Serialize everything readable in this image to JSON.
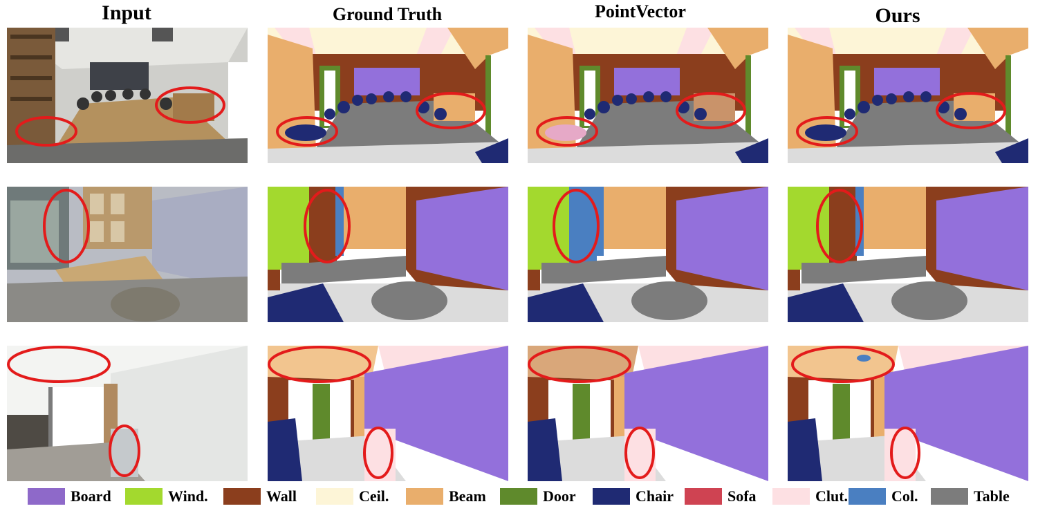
{
  "columns": [
    "Input",
    "Ground Truth",
    "PointVector",
    "Ours"
  ],
  "legend": [
    {
      "label": "Board",
      "color": "#8e69c9"
    },
    {
      "label": "Wind.",
      "color": "#a3d92e"
    },
    {
      "label": "Wall",
      "color": "#8b3e1d"
    },
    {
      "label": "Ceil.",
      "color": "#fdf5d7"
    },
    {
      "label": "Beam",
      "color": "#e9ae6c"
    },
    {
      "label": "Door",
      "color": "#5f8a2c"
    },
    {
      "label": "Chair",
      "color": "#1f2a73"
    },
    {
      "label": "Sofa",
      "color": "#cf4352"
    },
    {
      "label": "Clut.",
      "color": "#fde0e3"
    },
    {
      "label": "Col.",
      "color": "#4a7fc1"
    },
    {
      "label": "Table",
      "color": "#7c7c7c"
    }
  ],
  "colors": {
    "highlight": "#e31b1b",
    "floor": "#dcdcdc",
    "window_light": "#ffffff"
  }
}
